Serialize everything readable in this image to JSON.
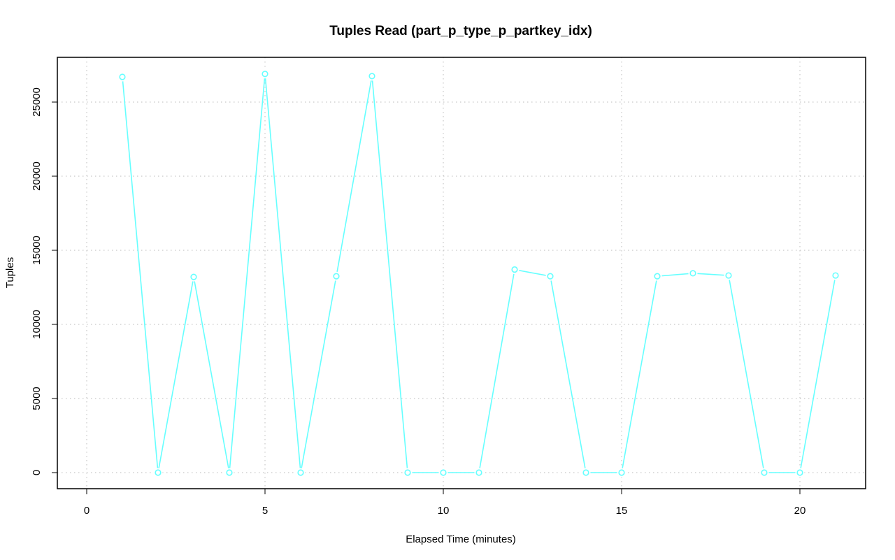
{
  "chart_data": {
    "type": "line",
    "title": "Tuples Read (part_p_type_p_partkey_idx)",
    "xlabel": "Elapsed Time (minutes)",
    "ylabel": "Tuples",
    "xlim": [
      0,
      21
    ],
    "ylim": [
      0,
      27000
    ],
    "x_ticks": [
      0,
      5,
      10,
      15,
      20
    ],
    "y_ticks": [
      0,
      5000,
      10000,
      15000,
      20000,
      25000
    ],
    "x_tick_labels": [
      "0",
      "5",
      "10",
      "15",
      "20"
    ],
    "y_tick_labels": [
      "0",
      "5000",
      "10000",
      "15000",
      "20000",
      "25000"
    ],
    "grid": true,
    "series": [
      {
        "color": "#66ffff",
        "x": [
          1,
          2,
          3,
          4,
          5,
          6,
          7,
          8,
          9,
          10,
          11,
          12,
          13,
          14,
          15,
          16,
          17,
          18,
          19,
          20,
          21
        ],
        "y": [
          26700,
          0,
          13200,
          0,
          26900,
          0,
          13250,
          26750,
          0,
          0,
          0,
          13700,
          13250,
          0,
          0,
          13250,
          13450,
          13300,
          0,
          0,
          13300
        ]
      }
    ]
  }
}
